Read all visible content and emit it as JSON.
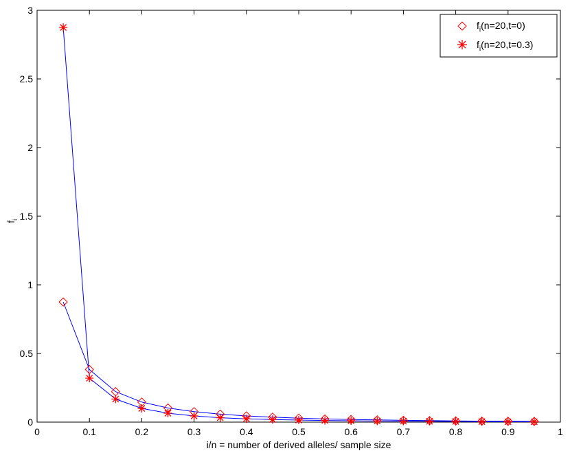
{
  "chart_data": {
    "type": "line",
    "title": "",
    "xlabel": "i/n = number of derived alleles/ sample size",
    "ylabel": {
      "main": "f",
      "sub": "i"
    },
    "xlim": [
      0,
      1
    ],
    "ylim": [
      0,
      3
    ],
    "xticks": [
      "0",
      "0.1",
      "0.2",
      "0.3",
      "0.4",
      "0.5",
      "0.6",
      "0.7",
      "0.8",
      "0.9",
      "1"
    ],
    "yticks": [
      "0",
      "0.5",
      "1",
      "1.5",
      "2",
      "2.5",
      "3"
    ],
    "grid": false,
    "legend_position": "top-right",
    "line_color": "#0000ff",
    "marker_color": "#ff0000",
    "x": [
      0.05,
      0.1,
      0.15,
      0.2,
      0.25,
      0.3,
      0.35,
      0.4,
      0.45,
      0.5,
      0.55,
      0.6,
      0.65,
      0.7,
      0.75,
      0.8,
      0.85,
      0.9,
      0.95
    ],
    "series": [
      {
        "name": {
          "main": "f",
          "sub": "i",
          "rest": "(n=20,t=0)"
        },
        "marker": "diamond",
        "values": [
          0.875,
          0.383,
          0.222,
          0.146,
          0.103,
          0.076,
          0.058,
          0.045,
          0.036,
          0.029,
          0.023,
          0.019,
          0.016,
          0.013,
          0.011,
          0.009,
          0.007,
          0.006,
          0.005
        ]
      },
      {
        "name": {
          "main": "f",
          "sub": "i",
          "rest": "(n=20,t=0.3)"
        },
        "marker": "asterisk",
        "values": [
          2.875,
          0.32,
          0.168,
          0.1,
          0.065,
          0.045,
          0.032,
          0.024,
          0.019,
          0.015,
          0.012,
          0.01,
          0.008,
          0.007,
          0.006,
          0.005,
          0.004,
          0.003,
          0.003
        ]
      }
    ]
  }
}
